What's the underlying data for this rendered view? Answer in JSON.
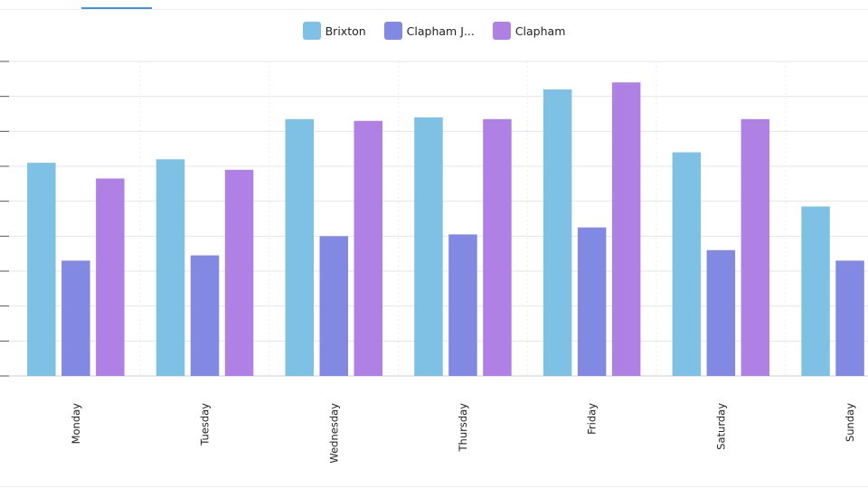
{
  "chart_data": {
    "type": "bar",
    "categories": [
      "Monday",
      "Tuesday",
      "Wednesday",
      "Thursday",
      "Friday",
      "Saturday",
      "Sunday"
    ],
    "series": [
      {
        "name": "Brixton",
        "color": "#7fc1e5",
        "values": [
          61,
          62,
          73.5,
          74,
          82,
          64,
          48.5
        ]
      },
      {
        "name": "Clapham J...",
        "color": "#8189e2",
        "values": [
          33,
          34.5,
          40,
          40.5,
          42.5,
          36,
          33
        ]
      },
      {
        "name": "Clapham",
        "color": "#b081e5",
        "values": [
          56.5,
          59,
          73,
          73.5,
          84,
          73.5,
          null
        ]
      }
    ],
    "ylim": [
      0,
      90
    ],
    "grid": true,
    "legend": "top-center"
  }
}
